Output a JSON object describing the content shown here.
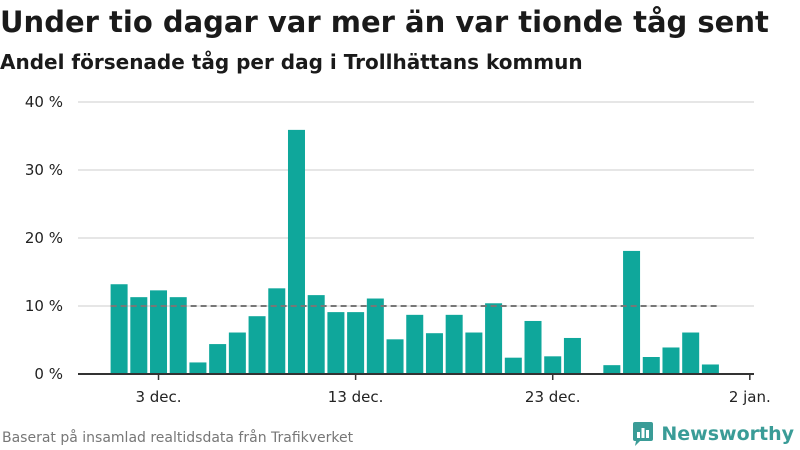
{
  "header": {
    "title": "Under tio dagar var mer än var tionde tåg sent",
    "subtitle": "Andel försenade tåg per dag i Trollhättans kommun"
  },
  "footer": {
    "source": "Baserat på insamlad realtidsdata från Trafikverket",
    "brand": "Newsworthy"
  },
  "colors": {
    "bar": "#0fa79b",
    "reference_line": "#777777",
    "grid": "#dddddd",
    "axis": "#333333",
    "brand": "#3a9c97"
  },
  "icons": {
    "brand_logo": "bar-chart-logo-icon"
  },
  "chart_data": {
    "type": "bar",
    "x_dates": [
      "1 dec.",
      "2 dec.",
      "3 dec.",
      "4 dec.",
      "5 dec.",
      "6 dec.",
      "7 dec.",
      "8 dec.",
      "9 dec.",
      "10 dec.",
      "11 dec.",
      "12 dec.",
      "13 dec.",
      "14 dec.",
      "15 dec.",
      "16 dec.",
      "17 dec.",
      "18 dec.",
      "19 dec.",
      "20 dec.",
      "21 dec.",
      "22 dec.",
      "23 dec.",
      "24 dec.",
      "25 dec.",
      "26 dec.",
      "27 dec.",
      "28 dec.",
      "29 dec.",
      "30 dec.",
      "31 dec."
    ],
    "values": [
      13.2,
      11.3,
      12.3,
      11.3,
      1.7,
      4.4,
      6.1,
      8.5,
      12.6,
      35.9,
      11.6,
      9.1,
      9.1,
      11.1,
      5.1,
      8.7,
      6.0,
      8.7,
      6.1,
      10.4,
      2.4,
      7.8,
      2.6,
      5.3,
      0,
      1.3,
      18.1,
      2.5,
      3.9,
      6.1,
      1.4
    ],
    "reference_value": 10,
    "y_ticks": [
      0,
      10,
      20,
      30,
      40
    ],
    "y_tick_labels": [
      "0 %",
      "10 %",
      "20 %",
      "30 %",
      "40 %"
    ],
    "ylim": [
      0,
      40
    ],
    "x_tick_labels": [
      {
        "label": "3 dec.",
        "day": 3
      },
      {
        "label": "13 dec.",
        "day": 13
      },
      {
        "label": "23 dec.",
        "day": 23
      },
      {
        "label": "2 jan.",
        "day": 33
      }
    ],
    "grid": true,
    "legend": "none"
  }
}
